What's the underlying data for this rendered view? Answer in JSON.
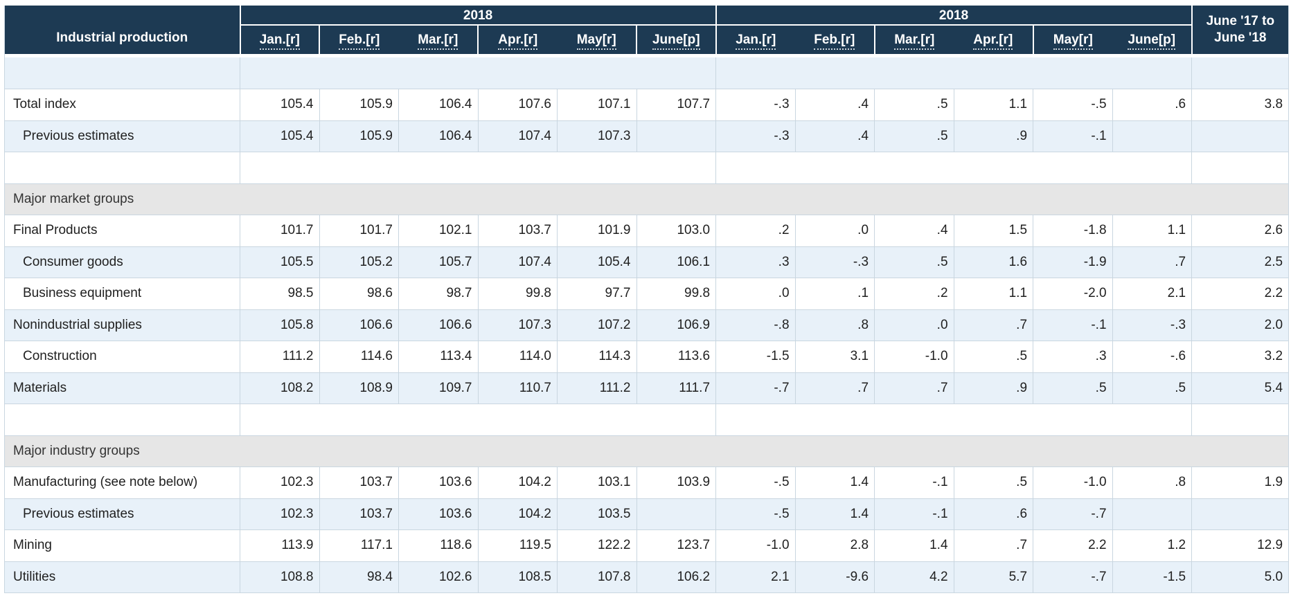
{
  "colors": {
    "header_bg": "#1d3a53",
    "alt_row_bg": "#e8f1f9",
    "section_bg": "#e6e6e6",
    "grid_border": "#c9d6e0",
    "header_separator": "#ffffff",
    "text_color": "#1f1f1f"
  },
  "table": {
    "corner_label": "Industrial production",
    "group1": {
      "year": "2018",
      "months": [
        "Jan.[r]",
        "Feb.[r]",
        "Mar.[r]",
        "Apr.[r]",
        "May[r]",
        "June[p]"
      ]
    },
    "group2": {
      "year": "2018",
      "months": [
        "Jan.[r]",
        "Feb.[r]",
        "Mar.[r]",
        "Apr.[r]",
        "May[r]",
        "June[p]"
      ]
    },
    "last_col_header_line1": "June '17 to",
    "last_col_header_line2": "June '18",
    "rows": [
      {
        "type": "spacer",
        "blue": true
      },
      {
        "type": "data",
        "blue": false,
        "indent": false,
        "label": "Total index",
        "idx": [
          "105.4",
          "105.9",
          "106.4",
          "107.6",
          "107.1",
          "107.7"
        ],
        "pct": [
          "-.3",
          ".4",
          ".5",
          "1.1",
          "-.5",
          ".6"
        ],
        "yoy": "3.8"
      },
      {
        "type": "data",
        "blue": true,
        "indent": true,
        "label": "Previous estimates",
        "idx": [
          "105.4",
          "105.9",
          "106.4",
          "107.4",
          "107.3",
          ""
        ],
        "pct": [
          "-.3",
          ".4",
          ".5",
          ".9",
          "-.1",
          ""
        ],
        "yoy": ""
      },
      {
        "type": "spacer",
        "blue": false
      },
      {
        "type": "section",
        "label": "Major market groups"
      },
      {
        "type": "data",
        "blue": false,
        "indent": false,
        "label": "Final Products",
        "idx": [
          "101.7",
          "101.7",
          "102.1",
          "103.7",
          "101.9",
          "103.0"
        ],
        "pct": [
          ".2",
          ".0",
          ".4",
          "1.5",
          "-1.8",
          "1.1"
        ],
        "yoy": "2.6"
      },
      {
        "type": "data",
        "blue": true,
        "indent": true,
        "label": "Consumer goods",
        "idx": [
          "105.5",
          "105.2",
          "105.7",
          "107.4",
          "105.4",
          "106.1"
        ],
        "pct": [
          ".3",
          "-.3",
          ".5",
          "1.6",
          "-1.9",
          ".7"
        ],
        "yoy": "2.5"
      },
      {
        "type": "data",
        "blue": false,
        "indent": true,
        "label": "Business equipment",
        "idx": [
          "98.5",
          "98.6",
          "98.7",
          "99.8",
          "97.7",
          "99.8"
        ],
        "pct": [
          ".0",
          ".1",
          ".2",
          "1.1",
          "-2.0",
          "2.1"
        ],
        "yoy": "2.2"
      },
      {
        "type": "data",
        "blue": true,
        "indent": false,
        "label": "Nonindustrial supplies",
        "idx": [
          "105.8",
          "106.6",
          "106.6",
          "107.3",
          "107.2",
          "106.9"
        ],
        "pct": [
          "-.8",
          ".8",
          ".0",
          ".7",
          "-.1",
          "-.3"
        ],
        "yoy": "2.0"
      },
      {
        "type": "data",
        "blue": false,
        "indent": true,
        "label": "Construction",
        "idx": [
          "111.2",
          "114.6",
          "113.4",
          "114.0",
          "114.3",
          "113.6"
        ],
        "pct": [
          "-1.5",
          "3.1",
          "-1.0",
          ".5",
          ".3",
          "-.6"
        ],
        "yoy": "3.2"
      },
      {
        "type": "data",
        "blue": true,
        "indent": false,
        "label": "Materials",
        "idx": [
          "108.2",
          "108.9",
          "109.7",
          "110.7",
          "111.2",
          "111.7"
        ],
        "pct": [
          "-.7",
          ".7",
          ".7",
          ".9",
          ".5",
          ".5"
        ],
        "yoy": "5.4"
      },
      {
        "type": "spacer",
        "blue": false
      },
      {
        "type": "section",
        "label": "Major industry groups"
      },
      {
        "type": "data",
        "blue": false,
        "indent": false,
        "label": "Manufacturing (see note below)",
        "idx": [
          "102.3",
          "103.7",
          "103.6",
          "104.2",
          "103.1",
          "103.9"
        ],
        "pct": [
          "-.5",
          "1.4",
          "-.1",
          ".5",
          "-1.0",
          ".8"
        ],
        "yoy": "1.9"
      },
      {
        "type": "data",
        "blue": true,
        "indent": true,
        "label": "Previous estimates",
        "idx": [
          "102.3",
          "103.7",
          "103.6",
          "104.2",
          "103.5",
          ""
        ],
        "pct": [
          "-.5",
          "1.4",
          "-.1",
          ".6",
          "-.7",
          ""
        ],
        "yoy": ""
      },
      {
        "type": "data",
        "blue": false,
        "indent": false,
        "label": "Mining",
        "idx": [
          "113.9",
          "117.1",
          "118.6",
          "119.5",
          "122.2",
          "123.7"
        ],
        "pct": [
          "-1.0",
          "2.8",
          "1.4",
          ".7",
          "2.2",
          "1.2"
        ],
        "yoy": "12.9"
      },
      {
        "type": "data",
        "blue": true,
        "indent": false,
        "label": "Utilities",
        "idx": [
          "108.8",
          "98.4",
          "102.6",
          "108.5",
          "107.8",
          "106.2"
        ],
        "pct": [
          "2.1",
          "-9.6",
          "4.2",
          "5.7",
          "-.7",
          "-1.5"
        ],
        "yoy": "5.0"
      }
    ]
  }
}
